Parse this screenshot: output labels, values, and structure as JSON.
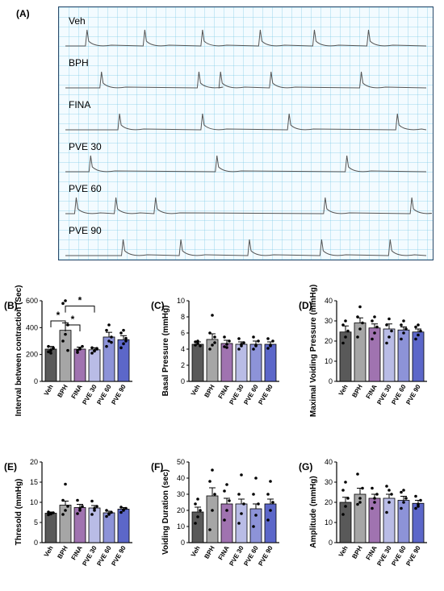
{
  "panel_a": {
    "label": "(A)",
    "traces": [
      {
        "name": "Veh",
        "spikes": [
          0.06,
          0.22,
          0.38,
          0.54,
          0.69,
          0.84
        ]
      },
      {
        "name": "BPH",
        "spikes": [
          0.1,
          0.37,
          0.43,
          0.57,
          0.82
        ]
      },
      {
        "name": "FINA",
        "spikes": [
          0.15,
          0.38,
          0.62,
          0.92
        ]
      },
      {
        "name": "PVE 30",
        "spikes": [
          0.07,
          0.42,
          0.78
        ]
      },
      {
        "name": "PVE 60",
        "spikes": [
          0.03,
          0.14,
          0.25,
          0.72,
          0.96
        ]
      },
      {
        "name": "PVE 90",
        "spikes": [
          0.16,
          0.32,
          0.51,
          0.71,
          0.9
        ]
      }
    ]
  },
  "colors": {
    "Veh": "#595959",
    "BPH": "#a6a6a6",
    "FINA": "#a073b0",
    "PVE 30": "#b9bce6",
    "PVE 60": "#8d93d8",
    "PVE 90": "#5c67c9",
    "trace": "#555555"
  },
  "chart_data": [
    {
      "panel": "(B)",
      "type": "bar",
      "categories": [
        "Veh",
        "BPH",
        "FINA",
        "PVE 30",
        "PVE 60",
        "PVE 90"
      ],
      "values": [
        240,
        380,
        240,
        235,
        330,
        310
      ],
      "errors": [
        20,
        55,
        15,
        15,
        35,
        30
      ],
      "points": [
        [
          220,
          230,
          250,
          260,
          210,
          245
        ],
        [
          300,
          350,
          420,
          580,
          600,
          230
        ],
        [
          215,
          240,
          260,
          230,
          245
        ],
        [
          210,
          230,
          240,
          250,
          225,
          245
        ],
        [
          260,
          300,
          330,
          380,
          420,
          290
        ],
        [
          250,
          280,
          320,
          360,
          380,
          300
        ]
      ],
      "ylabel": "Interval between contraction (Sec)",
      "ylim": [
        0,
        600
      ],
      "yticks": [
        0,
        200,
        400,
        600
      ],
      "significance": [
        {
          "from": 0,
          "to": 1,
          "label": "*"
        },
        {
          "from": 1,
          "to": 2,
          "label": "*"
        },
        {
          "from": 1,
          "to": 3,
          "label": "*"
        }
      ]
    },
    {
      "panel": "(C)",
      "type": "bar",
      "categories": [
        "Veh",
        "BPH",
        "FINA",
        "PVE 30",
        "PVE 60",
        "PVE 90"
      ],
      "values": [
        4.6,
        5.2,
        4.7,
        4.6,
        4.6,
        4.6
      ],
      "errors": [
        0.3,
        0.7,
        0.4,
        0.3,
        0.4,
        0.3
      ],
      "points": [
        [
          4.5,
          4.7,
          4.4,
          4.9,
          5.0
        ],
        [
          4.0,
          4.5,
          5.5,
          6.0,
          8.2,
          4.8
        ],
        [
          4.3,
          4.6,
          5.0,
          5.5,
          4.2
        ],
        [
          4.0,
          4.4,
          4.8,
          5.3,
          4.6
        ],
        [
          4.0,
          4.5,
          5.0,
          5.5,
          4.4
        ],
        [
          4.1,
          4.5,
          5.0,
          5.3,
          4.4
        ]
      ],
      "ylabel": "Basal Pressure (mmHg)",
      "ylim": [
        0,
        10
      ],
      "yticks": [
        0,
        2,
        4,
        6,
        8,
        10
      ],
      "significance": []
    },
    {
      "panel": "(D)",
      "type": "bar",
      "categories": [
        "Veh",
        "BPH",
        "FINA",
        "PVE 30",
        "PVE 60",
        "PVE 90"
      ],
      "values": [
        24.5,
        29,
        26.5,
        26,
        25.5,
        24.5
      ],
      "errors": [
        3,
        2.5,
        2,
        2.5,
        1.5,
        1.5
      ],
      "points": [
        [
          19,
          22,
          25,
          28,
          30
        ],
        [
          22,
          26,
          29,
          32,
          37
        ],
        [
          21,
          24,
          27,
          30,
          32
        ],
        [
          19,
          22,
          25,
          28,
          31
        ],
        [
          21,
          24,
          26,
          28,
          30
        ],
        [
          21,
          23,
          25,
          27,
          28
        ]
      ],
      "ylabel": "Maximal Voiding Pressure (mmHg)",
      "ylim": [
        0,
        40
      ],
      "yticks": [
        0,
        10,
        20,
        30,
        40
      ],
      "significance": []
    },
    {
      "panel": "(E)",
      "type": "bar",
      "categories": [
        "Veh",
        "BPH",
        "FINA",
        "PVE 30",
        "PVE 60",
        "PVE 90"
      ],
      "values": [
        7.3,
        9.3,
        8.7,
        8.6,
        7.4,
        8.3
      ],
      "errors": [
        0.3,
        1.0,
        0.8,
        0.6,
        0.4,
        0.4
      ],
      "points": [
        [
          6.9,
          7.2,
          7.4,
          7.6,
          7.1
        ],
        [
          7.0,
          8.0,
          9.0,
          10.5,
          14.5
        ],
        [
          7.2,
          8.0,
          9.0,
          10.5,
          8.5
        ],
        [
          7.0,
          8.0,
          9.0,
          10.3,
          8.5
        ],
        [
          6.5,
          7.0,
          7.5,
          8.0,
          7.2
        ],
        [
          7.5,
          8.0,
          8.5,
          8.8,
          8.2
        ]
      ],
      "ylabel": "Thresold (mmHg)",
      "ylim": [
        0,
        20
      ],
      "yticks": [
        0,
        5,
        10,
        15,
        20
      ],
      "significance": []
    },
    {
      "panel": "(F)",
      "type": "bar",
      "categories": [
        "Veh",
        "BPH",
        "FINA",
        "PVE 30",
        "PVE 60",
        "PVE 90"
      ],
      "values": [
        19,
        29,
        24,
        24,
        21,
        24
      ],
      "errors": [
        3,
        5,
        3.5,
        3,
        3,
        3
      ],
      "points": [
        [
          12,
          16,
          20,
          24,
          27
        ],
        [
          8,
          20,
          30,
          38,
          45
        ],
        [
          14,
          20,
          26,
          32,
          36
        ],
        [
          12,
          18,
          24,
          30,
          42
        ],
        [
          10,
          17,
          24,
          30,
          40
        ],
        [
          14,
          20,
          25,
          30,
          38
        ]
      ],
      "ylabel": "Voiding Duration (sec)",
      "ylim": [
        0,
        50
      ],
      "yticks": [
        0,
        10,
        20,
        30,
        40,
        50
      ],
      "significance": []
    },
    {
      "panel": "(G)",
      "type": "bar",
      "categories": [
        "Veh",
        "BPH",
        "FINA",
        "PVE 30",
        "PVE 60",
        "PVE 90"
      ],
      "values": [
        20,
        24,
        22,
        22,
        21,
        19.5
      ],
      "errors": [
        2.5,
        3,
        2,
        2,
        2,
        1.5
      ],
      "points": [
        [
          14,
          18,
          22,
          26,
          30
        ],
        [
          19,
          22,
          27,
          34,
          20
        ],
        [
          17,
          20,
          24,
          27,
          22
        ],
        [
          15,
          20,
          24,
          28,
          26
        ],
        [
          17,
          20,
          22,
          25,
          26
        ],
        [
          17,
          19,
          21,
          23,
          18
        ]
      ],
      "ylabel": "Amplitude (mmHg)",
      "ylim": [
        0,
        40
      ],
      "yticks": [
        0,
        10,
        20,
        30,
        40
      ],
      "significance": []
    }
  ]
}
